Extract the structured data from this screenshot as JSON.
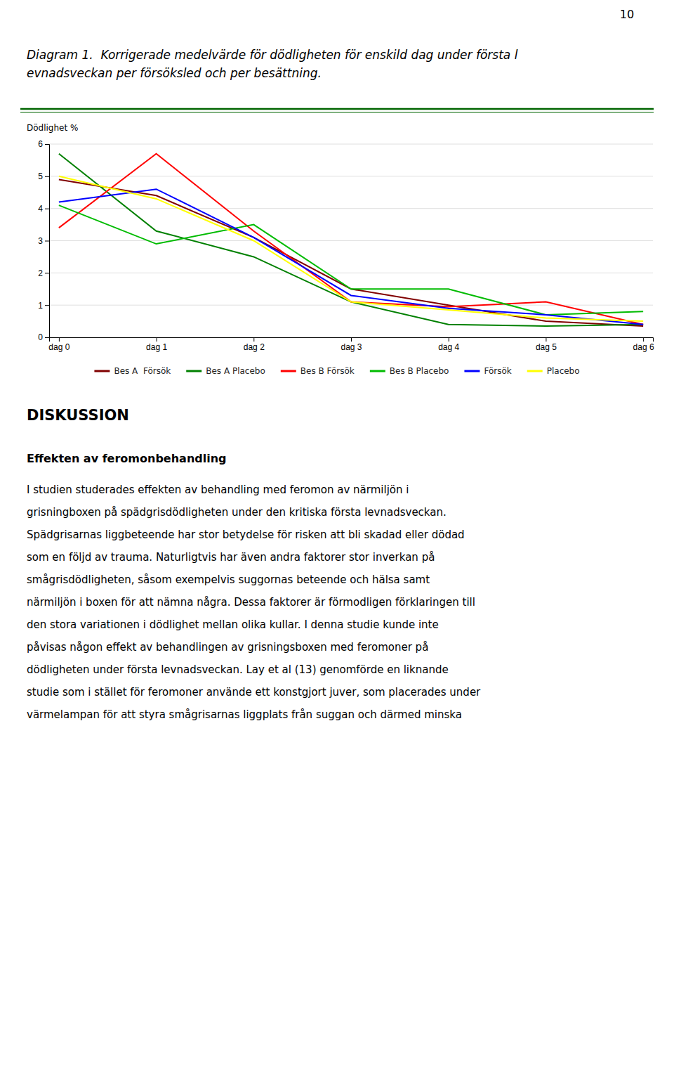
{
  "chart_data": {
    "type": "line",
    "title": [
      "Diagram 1.  Korrigerade medelvärde för dödligheten för enskild dag under första l",
      "evnadsveckan per försöksled och per besättning."
    ],
    "y_label": "Dödlighet %",
    "categories": [
      "dag 0",
      "dag 1",
      "dag 2",
      "dag 3",
      "dag 4",
      "dag 5",
      "dag 6"
    ],
    "ylim": [
      0,
      6
    ],
    "yticks": [
      0,
      1,
      2,
      3,
      4,
      5,
      6
    ],
    "grid": true,
    "legend": "bottom",
    "series": [
      {
        "name": "Bes A  Försök",
        "color": "#800000",
        "values": [
          4.9,
          4.4,
          3.1,
          1.5,
          1.0,
          0.5,
          0.35
        ]
      },
      {
        "name": "Bes A Placebo",
        "color": "#008000",
        "values": [
          5.7,
          3.3,
          2.5,
          1.1,
          0.4,
          0.35,
          0.4
        ]
      },
      {
        "name": "Bes B Försök",
        "color": "#FF0000",
        "values": [
          3.4,
          5.7,
          3.3,
          1.1,
          0.95,
          1.1,
          0.4
        ]
      },
      {
        "name": "Bes B Placebo",
        "color": "#00BB00",
        "values": [
          4.1,
          2.9,
          3.5,
          1.5,
          1.5,
          0.7,
          0.8
        ]
      },
      {
        "name": "Försök",
        "color": "#0000FF",
        "values": [
          4.2,
          4.6,
          3.1,
          1.3,
          0.9,
          0.7,
          0.4
        ]
      },
      {
        "name": "Placebo",
        "color": "#FFFF00",
        "values": [
          5.0,
          4.3,
          3.0,
          1.1,
          0.85,
          0.6,
          0.5
        ]
      }
    ]
  },
  "page_text": {
    "page_number": "10",
    "heading": "DISKUSSION",
    "subheading": "Effekten av feromonbehandling",
    "body": [
      "I studien studerades effekten av behandling med feromon av närmiljön i",
      "grisningboxen på spädgrisdödligheten under den kritiska första levnadsveckan.",
      "Spädgrisarnas liggbeteende har stor betydelse för risken att bli skadad eller dödad",
      "som en följd av trauma. Naturligtvis har även andra faktorer stor inverkan på",
      "smågrisdödligheten, såsom exempelvis suggornas beteende och hälsa samt",
      "närmiljön i boxen för att nämna några. Dessa faktorer är förmodligen förklaringen till",
      "den stora variationen i dödlighet mellan olika kullar. I denna studie kunde inte",
      "påvisas någon effekt av behandlingen av grisningsboxen med feromoner på",
      "dödligheten under första levnadsveckan. Lay et al (13) genomförde en liknande",
      "studie som i stället för feromoner använde ett konstgjort juver, som placerades under",
      "värmelampan för att styra smågrisarnas liggplats från suggan och därmed minska"
    ]
  }
}
